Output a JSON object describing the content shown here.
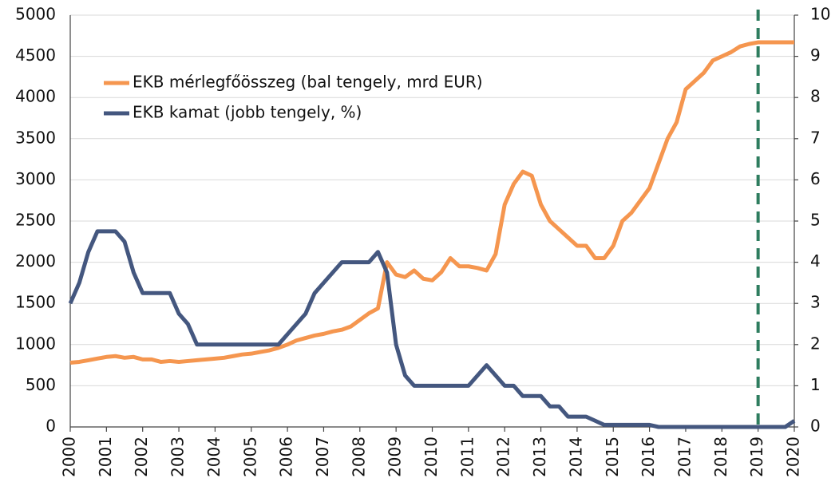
{
  "chart_data": {
    "type": "line",
    "x": [
      2000,
      2000.25,
      2000.5,
      2000.75,
      2001,
      2001.25,
      2001.5,
      2001.75,
      2002,
      2002.25,
      2002.5,
      2002.75,
      2003,
      2003.25,
      2003.5,
      2003.75,
      2004,
      2004.25,
      2004.5,
      2004.75,
      2005,
      2005.25,
      2005.5,
      2005.75,
      2006,
      2006.25,
      2006.5,
      2006.75,
      2007,
      2007.25,
      2007.5,
      2007.75,
      2008,
      2008.25,
      2008.5,
      2008.75,
      2009,
      2009.25,
      2009.5,
      2009.75,
      2010,
      2010.25,
      2010.5,
      2010.75,
      2011,
      2011.25,
      2011.5,
      2011.75,
      2012,
      2012.25,
      2012.5,
      2012.75,
      2013,
      2013.25,
      2013.5,
      2013.75,
      2014,
      2014.25,
      2014.5,
      2014.75,
      2015,
      2015.25,
      2015.5,
      2015.75,
      2016,
      2016.25,
      2016.5,
      2016.75,
      2017,
      2017.25,
      2017.5,
      2017.75,
      2018,
      2018.25,
      2018.5,
      2018.75,
      2019,
      2019.25,
      2019.5,
      2019.75,
      2020
    ],
    "series": [
      {
        "name": "EKB mérlegfőösszeg (bal tengely, mrd EUR)",
        "color": "#f5964f",
        "values": [
          780,
          790,
          810,
          830,
          850,
          860,
          840,
          850,
          820,
          820,
          790,
          800,
          790,
          800,
          810,
          820,
          830,
          840,
          860,
          880,
          890,
          910,
          930,
          960,
          1000,
          1050,
          1080,
          1110,
          1130,
          1160,
          1180,
          1220,
          1300,
          1380,
          1440,
          2000,
          1850,
          1820,
          1900,
          1800,
          1780,
          1880,
          2050,
          1950,
          1950,
          1930,
          1900,
          2100,
          2700,
          2950,
          3100,
          3050,
          2700,
          2500,
          2400,
          2300,
          2200,
          2200,
          2050,
          2050,
          2200,
          2500,
          2600,
          2750,
          2900,
          3200,
          3500,
          3700,
          4100,
          4200,
          4300,
          4450,
          4500,
          4550,
          4620,
          4650,
          4670,
          4670,
          4670,
          4670,
          4670
        ]
      },
      {
        "name": "EKB kamat (jobb tengely, %)",
        "color": "#44577f",
        "axis": "y2",
        "values": [
          3.0,
          3.5,
          4.25,
          4.75,
          4.75,
          4.75,
          4.5,
          3.75,
          3.25,
          3.25,
          3.25,
          3.25,
          2.75,
          2.5,
          2.0,
          2.0,
          2.0,
          2.0,
          2.0,
          2.0,
          2.0,
          2.0,
          2.0,
          2.0,
          2.25,
          2.5,
          2.75,
          3.25,
          3.5,
          3.75,
          4.0,
          4.0,
          4.0,
          4.0,
          4.25,
          3.75,
          2.0,
          1.25,
          1.0,
          1.0,
          1.0,
          1.0,
          1.0,
          1.0,
          1.0,
          1.25,
          1.5,
          1.25,
          1.0,
          1.0,
          0.75,
          0.75,
          0.75,
          0.5,
          0.5,
          0.25,
          0.25,
          0.25,
          0.15,
          0.05,
          0.05,
          0.05,
          0.05,
          0.05,
          0.05,
          0.0,
          0.0,
          0.0,
          0.0,
          0.0,
          0.0,
          0.0,
          0.0,
          0.0,
          0.0,
          0.0,
          0.0,
          0.0,
          0.0,
          0.0,
          0.15
        ]
      }
    ],
    "xlim": [
      2000,
      2020
    ],
    "xticks": [
      2000,
      2001,
      2002,
      2003,
      2004,
      2005,
      2006,
      2007,
      2008,
      2009,
      2010,
      2011,
      2012,
      2013,
      2014,
      2015,
      2016,
      2017,
      2018,
      2019,
      2020
    ],
    "ylim": [
      0,
      5000
    ],
    "yticks": [
      0,
      500,
      1000,
      1500,
      2000,
      2500,
      3000,
      3500,
      4000,
      4500,
      5000
    ],
    "y2lim": [
      0,
      10
    ],
    "y2ticks": [
      0,
      1,
      2,
      3,
      4,
      5,
      6,
      7,
      8,
      9,
      10
    ],
    "grid": true,
    "vline": {
      "x": 2019,
      "color": "#2e7d5f"
    }
  }
}
